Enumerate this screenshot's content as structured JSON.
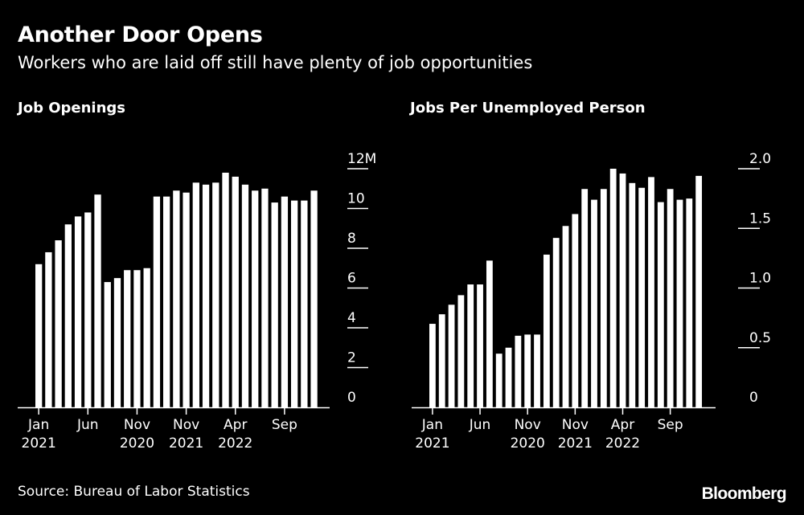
{
  "header": {
    "title": "Another Door Opens",
    "subtitle": "Workers who are laid off still have plenty of job opportunities"
  },
  "footer": {
    "source": "Source: Bureau of Labor Statistics",
    "brand": "Bloomberg"
  },
  "colors": {
    "background": "#000000",
    "bars": "#ffffff",
    "text": "#ffffff"
  },
  "chart_data": [
    {
      "type": "bar",
      "title": "Job Openings",
      "xlabel": "",
      "ylabel": "",
      "ylim": [
        0,
        12
      ],
      "yticks": [
        "0",
        "2",
        "4",
        "6",
        "8",
        "10",
        "12M"
      ],
      "grid": false,
      "xtick_labels": [
        {
          "index": 0,
          "lines": [
            "Jan",
            "2021"
          ]
        },
        {
          "index": 5,
          "lines": [
            "Jun",
            ""
          ]
        },
        {
          "index": 10,
          "lines": [
            "Nov",
            "2020"
          ]
        },
        {
          "index": 15,
          "lines": [
            "Nov",
            "2021"
          ]
        },
        {
          "index": 20,
          "lines": [
            "Apr",
            "2022"
          ]
        },
        {
          "index": 25,
          "lines": [
            "Sep",
            ""
          ]
        }
      ],
      "values": [
        7.2,
        7.8,
        8.4,
        9.2,
        9.6,
        9.8,
        10.7,
        6.3,
        6.5,
        6.9,
        6.9,
        7.0,
        10.6,
        10.6,
        10.9,
        10.8,
        11.3,
        11.2,
        11.3,
        11.8,
        11.6,
        11.2,
        10.9,
        11.0,
        10.3,
        10.6,
        10.4,
        10.4,
        10.9
      ]
    },
    {
      "type": "bar",
      "title": "Jobs Per Unemployed Person",
      "xlabel": "",
      "ylabel": "",
      "ylim": [
        0,
        2.0
      ],
      "yticks": [
        "0",
        "0.5",
        "1.0",
        "1.5",
        "2.0"
      ],
      "grid": false,
      "xtick_labels": [
        {
          "index": 0,
          "lines": [
            "Jan",
            "2021"
          ]
        },
        {
          "index": 5,
          "lines": [
            "Jun",
            ""
          ]
        },
        {
          "index": 10,
          "lines": [
            "Nov",
            "2020"
          ]
        },
        {
          "index": 15,
          "lines": [
            "Nov",
            "2021"
          ]
        },
        {
          "index": 20,
          "lines": [
            "Apr",
            "2022"
          ]
        },
        {
          "index": 25,
          "lines": [
            "Sep",
            ""
          ]
        }
      ],
      "values": [
        0.7,
        0.78,
        0.86,
        0.94,
        1.03,
        1.03,
        1.23,
        0.45,
        0.5,
        0.6,
        0.61,
        0.61,
        1.28,
        1.42,
        1.52,
        1.62,
        1.83,
        1.74,
        1.83,
        2.0,
        1.96,
        1.88,
        1.84,
        1.93,
        1.72,
        1.83,
        1.74,
        1.75,
        1.94
      ]
    }
  ]
}
